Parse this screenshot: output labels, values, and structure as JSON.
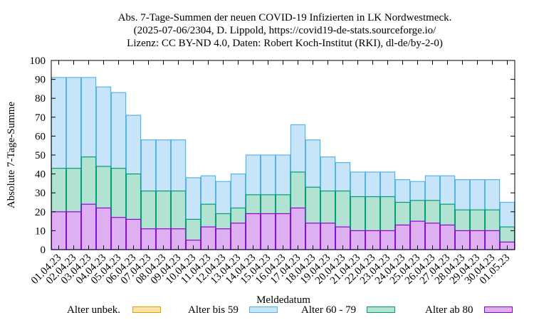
{
  "chart_data": {
    "type": "bar",
    "stacked": true,
    "title_lines": [
      "Abs. 7-Tage-Summen der neuen COVID-19 Infizierten in LK Nordwestmeck.",
      "(2025-07-06/2304, D. Lippold, https://covid19-de-stats.sourceforge.io/",
      "Lizenz: CC BY-ND 4.0, Daten: Robert Koch-Institut (RKI), dl-de/by-2-0)"
    ],
    "xlabel": "Meldedatum",
    "ylabel": "Absolute 7-Tage-Summe",
    "ylim": [
      0,
      100
    ],
    "yticks": [
      0,
      10,
      20,
      30,
      40,
      50,
      60,
      70,
      80,
      90,
      100
    ],
    "grid": false,
    "legend_position": "bottom",
    "categories": [
      "01.04.23",
      "02.04.23",
      "03.04.23",
      "04.04.23",
      "05.04.23",
      "06.04.23",
      "07.04.23",
      "08.04.23",
      "09.04.23",
      "10.04.23",
      "11.04.23",
      "12.04.23",
      "13.04.23",
      "14.04.23",
      "15.04.23",
      "16.04.23",
      "17.04.23",
      "18.04.23",
      "19.04.23",
      "20.04.23",
      "21.04.23",
      "22.04.23",
      "23.04.23",
      "24.04.23",
      "25.04.23",
      "26.04.23",
      "27.04.23",
      "28.04.23",
      "29.04.23",
      "30.04.23",
      "01.05.23"
    ],
    "series": [
      {
        "name": "Alter unbek.",
        "fill": "#fde4a8",
        "stroke": "#e69f00",
        "values": [
          0,
          0,
          0,
          0,
          0,
          0,
          0,
          0,
          0,
          0,
          0,
          0,
          0,
          0,
          0,
          0,
          0,
          0,
          0,
          0,
          0,
          0,
          0,
          0,
          0,
          0,
          0,
          0,
          0,
          0,
          0
        ]
      },
      {
        "name": "Alter bis 59",
        "fill": "#c8e4f8",
        "stroke": "#56b4e9",
        "values": [
          48,
          48,
          42,
          42,
          40,
          31,
          27,
          27,
          27,
          22,
          15,
          17,
          18,
          21,
          21,
          21,
          25,
          25,
          18,
          15,
          13,
          13,
          13,
          12,
          10,
          13,
          15,
          16,
          16,
          16,
          13
        ]
      },
      {
        "name": "Alter 60 - 79",
        "fill": "#b2e2d2",
        "stroke": "#009e73",
        "values": [
          23,
          23,
          25,
          22,
          26,
          24,
          20,
          20,
          20,
          11,
          12,
          8,
          8,
          10,
          10,
          10,
          19,
          19,
          17,
          19,
          18,
          18,
          18,
          12,
          11,
          12,
          11,
          11,
          11,
          11,
          8
        ]
      },
      {
        "name": "Alter ab 80",
        "fill": "#deb0f2",
        "stroke": "#9400d3",
        "values": [
          20,
          20,
          24,
          22,
          17,
          16,
          11,
          11,
          11,
          5,
          12,
          11,
          14,
          19,
          19,
          19,
          22,
          14,
          14,
          12,
          10,
          10,
          10,
          13,
          15,
          14,
          13,
          10,
          10,
          10,
          4
        ]
      }
    ]
  }
}
